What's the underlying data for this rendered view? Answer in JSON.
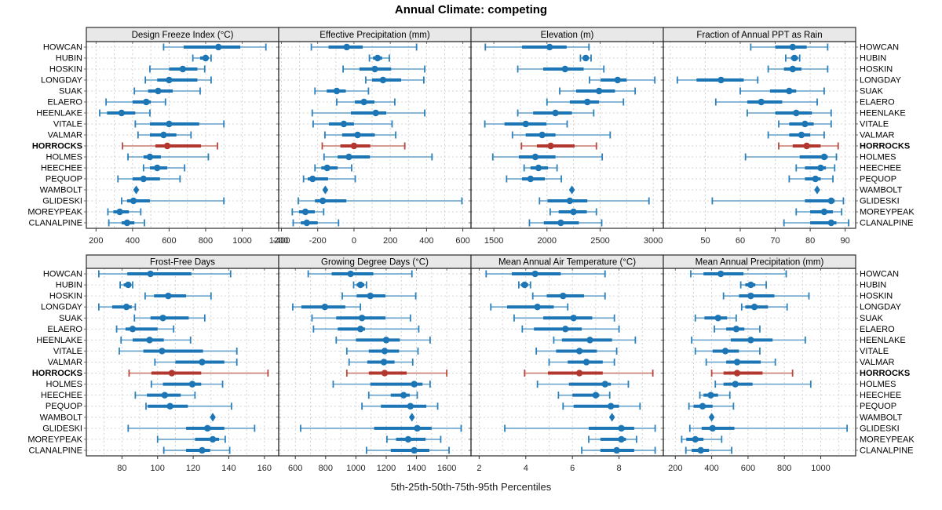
{
  "title": "Annual Climate: competing",
  "caption": "5th-25th-50th-75th-95th Percentiles",
  "colors": {
    "blue_main": "#1C75B4",
    "blue_outer": "#66A1CC",
    "blue_cap": "#2D81BB",
    "red_main": "#B2372E",
    "red_outer": "#C97B6F",
    "red_cap": "#B8463B",
    "grid": "#D2D2D2",
    "row_guide": "#D6D6D6",
    "strip_bg": "#E8E8E8",
    "border": "#2A2A2A",
    "tick_text": "#262626",
    "label_text": "#000000"
  },
  "chart_data": {
    "type": "dotplot",
    "percentiles": [
      "5th",
      "25th",
      "50th",
      "75th",
      "95th"
    ],
    "sites": [
      "HOWCAN",
      "HUBIN",
      "HOSKIN",
      "LONGDAY",
      "SUAK",
      "ELAERO",
      "HEENLAKE",
      "VITALE",
      "VALMAR",
      "HORROCKS",
      "HOLMES",
      "HEECHEE",
      "PEQUOP",
      "WAMBOLT",
      "GLIDESKI",
      "MOREYPEAK",
      "CLANALPINE"
    ],
    "highlight_site": "HORROCKS",
    "panels": [
      {
        "title": "Design Freeze Index (°C)",
        "grid_row": 0,
        "grid_col": 0,
        "domain": [
          147,
          1200
        ],
        "major_ticks": [
          200,
          400,
          600,
          800,
          1000,
          1200
        ],
        "grid_step": 100,
        "values": [
          [
            570,
            680,
            870,
            990,
            1130
          ],
          [
            730,
            770,
            800,
            815,
            830
          ],
          [
            495,
            600,
            675,
            755,
            795
          ],
          [
            470,
            535,
            600,
            755,
            830
          ],
          [
            410,
            485,
            540,
            620,
            770
          ],
          [
            255,
            400,
            475,
            500,
            580
          ],
          [
            220,
            260,
            340,
            415,
            495
          ],
          [
            415,
            495,
            600,
            765,
            900
          ],
          [
            430,
            495,
            570,
            640,
            720
          ],
          [
            345,
            525,
            590,
            775,
            865
          ],
          [
            375,
            460,
            495,
            555,
            815
          ],
          [
            460,
            495,
            535,
            590,
            685
          ],
          [
            320,
            400,
            460,
            550,
            660
          ],
          [
            420,
            420,
            420,
            420,
            420
          ],
          [
            340,
            370,
            405,
            495,
            900
          ],
          [
            265,
            295,
            330,
            380,
            445
          ],
          [
            270,
            340,
            370,
            410,
            465
          ]
        ]
      },
      {
        "title": "Effective Precipitation (mm)",
        "grid_row": 0,
        "grid_col": 1,
        "domain": [
          -415,
          645
        ],
        "major_ticks": [
          -400,
          -200,
          0,
          200,
          400,
          600
        ],
        "grid_step": 100,
        "values": [
          [
            -235,
            -140,
            -40,
            48,
            345
          ],
          [
            85,
            105,
            130,
            155,
            195
          ],
          [
            -60,
            30,
            115,
            205,
            390
          ],
          [
            65,
            100,
            160,
            260,
            385
          ],
          [
            -215,
            -150,
            -95,
            -45,
            80
          ],
          [
            -95,
            5,
            55,
            113,
            225
          ],
          [
            -230,
            -17,
            120,
            178,
            390
          ],
          [
            -225,
            -138,
            -56,
            0,
            210
          ],
          [
            -160,
            -65,
            20,
            115,
            230
          ],
          [
            -175,
            -75,
            0,
            90,
            280
          ],
          [
            -165,
            -90,
            -28,
            88,
            430
          ],
          [
            -215,
            -180,
            -148,
            -90,
            -13
          ],
          [
            -278,
            -255,
            -228,
            -143,
            7
          ],
          [
            -158,
            -158,
            -158,
            -158,
            -158
          ],
          [
            -307,
            -215,
            -172,
            -42,
            595
          ],
          [
            -340,
            -303,
            -268,
            -216,
            -167
          ],
          [
            -335,
            -293,
            -260,
            -200,
            -85
          ]
        ]
      },
      {
        "title": "Elevation (m)",
        "grid_row": 0,
        "grid_col": 2,
        "domain": [
          1285,
          3095
        ],
        "major_ticks": [
          1500,
          2000,
          2500,
          3000
        ],
        "grid_step": 250,
        "values": [
          [
            1420,
            1765,
            2025,
            2185,
            2395
          ],
          [
            2315,
            2340,
            2365,
            2390,
            2415
          ],
          [
            1725,
            1965,
            2170,
            2345,
            2535
          ],
          [
            2400,
            2505,
            2665,
            2750,
            3015
          ],
          [
            2120,
            2275,
            2490,
            2640,
            2830
          ],
          [
            2000,
            2215,
            2380,
            2490,
            2720
          ],
          [
            1725,
            1870,
            2080,
            2235,
            2440
          ],
          [
            1415,
            1600,
            1800,
            1995,
            2190
          ],
          [
            1675,
            1800,
            1955,
            2080,
            2595
          ],
          [
            1760,
            1905,
            2035,
            2260,
            2465
          ],
          [
            1490,
            1735,
            1890,
            2080,
            2520
          ],
          [
            1785,
            1845,
            1920,
            2010,
            2095
          ],
          [
            1620,
            1765,
            1845,
            1980,
            2135
          ],
          [
            2235,
            2235,
            2235,
            2235,
            2235
          ],
          [
            1930,
            2005,
            2215,
            2380,
            2960
          ],
          [
            2030,
            2110,
            2250,
            2375,
            2465
          ],
          [
            1835,
            1970,
            2130,
            2300,
            2515
          ]
        ]
      },
      {
        "title": "Fraction of Annual PPT as Rain",
        "grid_row": 0,
        "grid_col": 3,
        "domain": [
          38,
          93
        ],
        "major_ticks": [
          50,
          60,
          70,
          80,
          90
        ],
        "grid_step": 10,
        "values": [
          [
            63,
            70,
            75,
            79,
            85
          ],
          [
            73,
            74.5,
            75.5,
            76.5,
            77
          ],
          [
            68,
            72.5,
            75,
            77.5,
            85
          ],
          [
            42,
            47.5,
            54.5,
            61,
            65
          ],
          [
            60,
            68.5,
            74,
            76,
            84
          ],
          [
            53,
            62,
            66,
            72,
            82
          ],
          [
            62,
            70,
            76,
            80.5,
            86
          ],
          [
            71,
            74,
            78.5,
            81,
            86
          ],
          [
            68,
            74,
            77.5,
            80,
            84
          ],
          [
            71,
            75,
            79,
            83,
            88
          ],
          [
            61.5,
            77,
            84,
            85,
            87.5
          ],
          [
            76,
            78.5,
            83,
            84.5,
            87
          ],
          [
            74,
            78.5,
            81.5,
            83,
            86.5
          ],
          [
            82,
            82,
            82,
            82,
            82
          ],
          [
            52,
            78.5,
            86,
            87,
            89.5
          ],
          [
            76,
            80,
            84,
            86.5,
            89
          ],
          [
            72.5,
            80,
            86,
            87.5,
            91
          ]
        ]
      },
      {
        "title": "Frost-Free Days",
        "grid_row": 1,
        "grid_col": 0,
        "domain": [
          60,
          168
        ],
        "major_ticks": [
          80,
          100,
          120,
          140,
          160
        ],
        "grid_step": 10,
        "values": [
          [
            67,
            83,
            96,
            119,
            141
          ],
          [
            79,
            81,
            83.5,
            85,
            86
          ],
          [
            93,
            98,
            106,
            116,
            130
          ],
          [
            67,
            74.5,
            82.5,
            85.5,
            87.5
          ],
          [
            87,
            96,
            103,
            117.5,
            126.5
          ],
          [
            77,
            82,
            86,
            100,
            109
          ],
          [
            79.5,
            86,
            95.5,
            103.5,
            118.5
          ],
          [
            78.5,
            92,
            102.5,
            125.5,
            144.5
          ],
          [
            98.5,
            110,
            125,
            137.5,
            144.5
          ],
          [
            84,
            96.5,
            108,
            124.5,
            162
          ],
          [
            96.5,
            103,
            119.5,
            124.5,
            136.5
          ],
          [
            87.5,
            94,
            104,
            113,
            121
          ],
          [
            93.5,
            94.5,
            107,
            117,
            141.5
          ],
          [
            131,
            131,
            131,
            131,
            131
          ],
          [
            83.5,
            116,
            128,
            137.5,
            154.5
          ],
          [
            100,
            121,
            131,
            134.5,
            138
          ],
          [
            103.5,
            116,
            125,
            129.5,
            140.5
          ]
        ]
      },
      {
        "title": "Growing Degree Days (°C)",
        "grid_row": 1,
        "grid_col": 1,
        "domain": [
          490,
          1760
        ],
        "major_ticks": [
          600,
          800,
          1000,
          1200,
          1400,
          1600
        ],
        "grid_step": 100,
        "values": [
          [
            685,
            840,
            965,
            1115,
            1370
          ],
          [
            985,
            1005,
            1030,
            1055,
            1070
          ],
          [
            910,
            1005,
            1095,
            1195,
            1395
          ],
          [
            583,
            640,
            795,
            930,
            1030
          ],
          [
            710,
            870,
            1040,
            1195,
            1360
          ],
          [
            720,
            880,
            1030,
            1060,
            1415
          ],
          [
            870,
            1000,
            1200,
            1290,
            1490
          ],
          [
            940,
            1085,
            1190,
            1285,
            1410
          ],
          [
            955,
            1075,
            1185,
            1255,
            1375
          ],
          [
            940,
            1085,
            1190,
            1335,
            1600
          ],
          [
            850,
            1095,
            1385,
            1440,
            1490
          ],
          [
            1085,
            1230,
            1315,
            1355,
            1405
          ],
          [
            1040,
            1165,
            1360,
            1465,
            1540
          ],
          [
            1370,
            1370,
            1370,
            1370,
            1370
          ],
          [
            635,
            1120,
            1405,
            1500,
            1695
          ],
          [
            1205,
            1265,
            1345,
            1460,
            1560
          ],
          [
            1070,
            1230,
            1385,
            1485,
            1615
          ]
        ]
      },
      {
        "title": "Mean Annual Air Temperature (°C)",
        "grid_row": 1,
        "grid_col": 2,
        "domain": [
          1.65,
          9.9
        ],
        "major_ticks": [
          2,
          4,
          6,
          8
        ],
        "grid_step": 1,
        "values": [
          [
            2.3,
            3.4,
            4.4,
            5.5,
            7.4
          ],
          [
            3.7,
            3.8,
            3.95,
            4.1,
            4.2
          ],
          [
            4.3,
            4.9,
            5.6,
            6.5,
            7.4
          ],
          [
            2.5,
            3.2,
            4.5,
            5.2,
            5.8
          ],
          [
            3.5,
            4.75,
            6.05,
            6.85,
            7.8
          ],
          [
            3.85,
            4.35,
            5.7,
            6.4,
            8.0
          ],
          [
            5.2,
            5.55,
            6.75,
            7.7,
            8.7
          ],
          [
            4.45,
            5.3,
            6.3,
            7.05,
            7.9
          ],
          [
            5.0,
            5.8,
            6.6,
            7.3,
            7.8
          ],
          [
            3.95,
            4.95,
            6.3,
            7.3,
            9.45
          ],
          [
            4.5,
            5.85,
            7.4,
            7.65,
            8.4
          ],
          [
            5.4,
            6.0,
            7.0,
            7.15,
            7.6
          ],
          [
            5.6,
            6.05,
            7.65,
            8.0,
            8.9
          ],
          [
            7.7,
            7.7,
            7.7,
            7.7,
            7.7
          ],
          [
            3.1,
            6.7,
            8.1,
            8.65,
            9.55
          ],
          [
            6.7,
            7.2,
            8.1,
            8.3,
            8.75
          ],
          [
            6.4,
            7.2,
            7.9,
            8.65,
            9.55
          ]
        ]
      },
      {
        "title": "Mean Annual Precipitation (mm)",
        "grid_row": 1,
        "grid_col": 3,
        "domain": [
          134,
          1192
        ],
        "major_ticks": [
          200,
          400,
          600,
          800,
          1000
        ],
        "grid_step": 100,
        "values": [
          [
            285,
            355,
            450,
            575,
            810
          ],
          [
            560,
            585,
            615,
            640,
            700
          ],
          [
            465,
            550,
            615,
            745,
            935
          ],
          [
            565,
            585,
            635,
            710,
            815
          ],
          [
            310,
            360,
            435,
            485,
            535
          ],
          [
            415,
            480,
            535,
            580,
            665
          ],
          [
            290,
            505,
            615,
            735,
            915
          ],
          [
            310,
            405,
            475,
            550,
            665
          ],
          [
            370,
            480,
            540,
            670,
            750
          ],
          [
            400,
            465,
            540,
            680,
            845
          ],
          [
            420,
            465,
            530,
            625,
            945
          ],
          [
            335,
            355,
            395,
            435,
            500
          ],
          [
            275,
            300,
            350,
            405,
            520
          ],
          [
            400,
            400,
            400,
            400,
            400
          ],
          [
            280,
            345,
            405,
            525,
            1145
          ],
          [
            235,
            260,
            310,
            355,
            455
          ],
          [
            258,
            290,
            340,
            385,
            510
          ]
        ]
      }
    ]
  }
}
